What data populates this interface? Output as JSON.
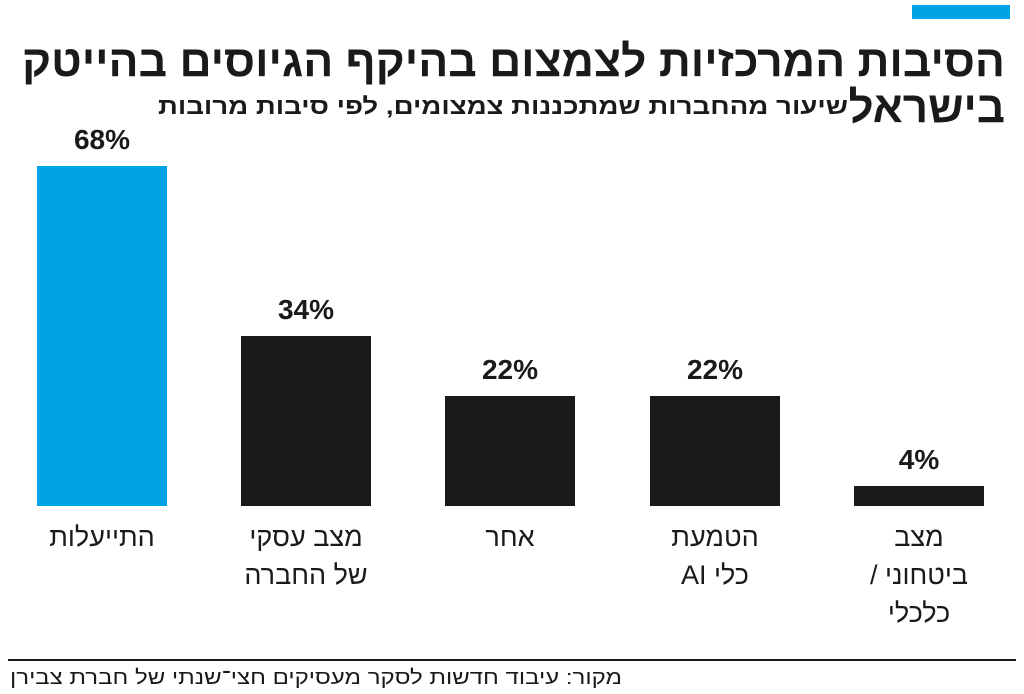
{
  "chart_data": {
    "type": "bar",
    "title": [
      "הסיבות המרכזיות לצמצום בהיקף הגיוסים בהייטק",
      "בישראל"
    ],
    "subtitle": "שיעור מהחברות שמתכננות צמצומים, לפי סיבות מרובות",
    "categories": [
      [
        "התייעלות"
      ],
      [
        "מצב עסקי",
        "של החברה"
      ],
      [
        "אחר"
      ],
      [
        "הטמעת",
        "כלי AI"
      ],
      [
        "מצב",
        "ביטחוני /",
        "כלכלי"
      ]
    ],
    "values": [
      68,
      34,
      22,
      22,
      4
    ],
    "value_labels": [
      "68%",
      "34%",
      "22%",
      "22%",
      "4%"
    ],
    "colors": [
      "#00a3e6",
      "#1a1a1a",
      "#1a1a1a",
      "#1a1a1a",
      "#1a1a1a"
    ],
    "source": "מקור: עיבוד חדשות לסקר מעסיקים חצי־שנתי של חברת צבירן"
  }
}
